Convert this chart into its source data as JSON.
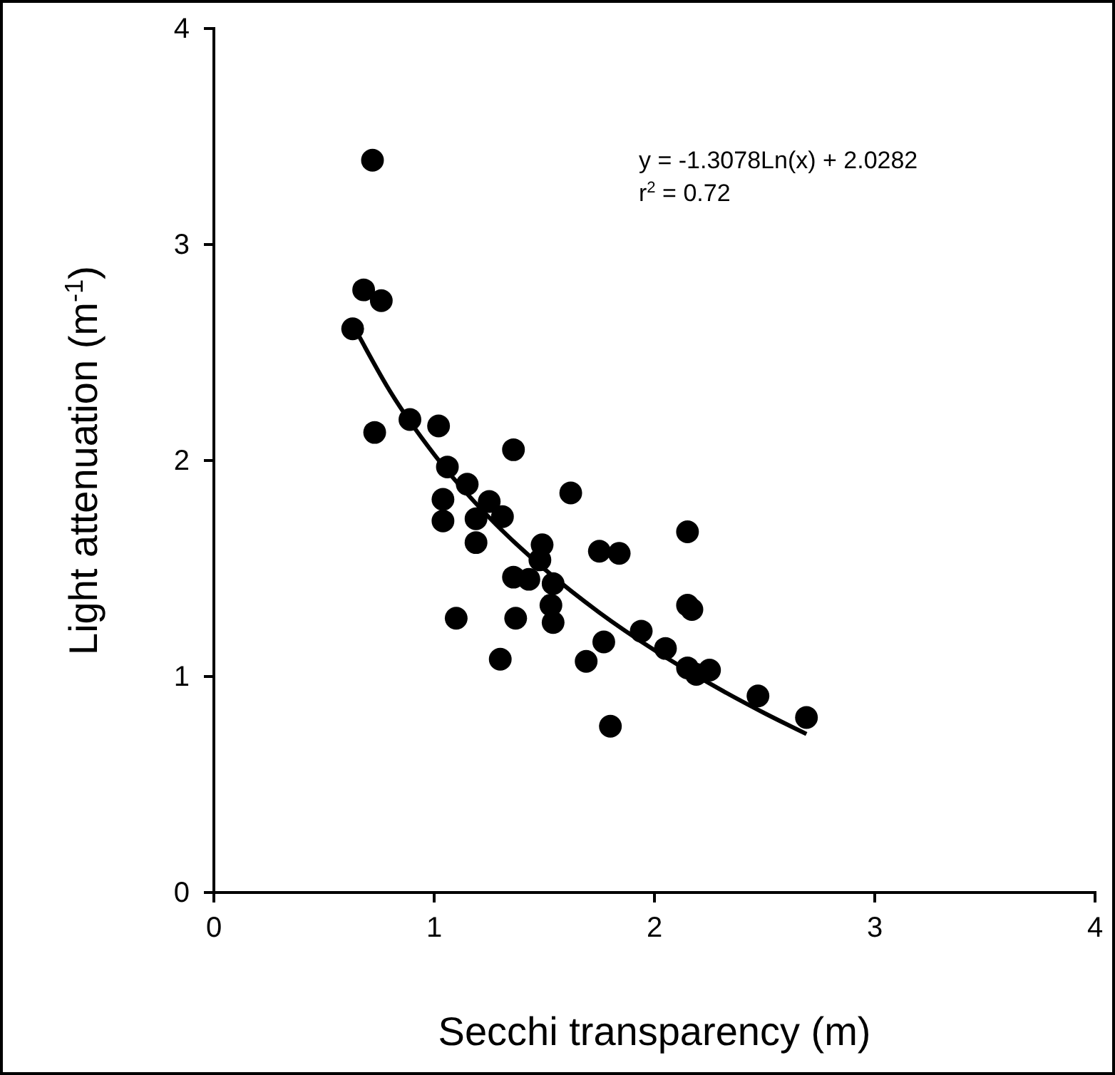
{
  "chart_data": {
    "type": "scatter",
    "xlabel": "Secchi transparency (m)",
    "ylabel": "Light attenuation (m$^{-1}$)",
    "xlim": [
      0,
      4
    ],
    "ylim": [
      0,
      4
    ],
    "xticks": [
      0,
      1,
      2,
      3,
      4
    ],
    "yticks": [
      0,
      1,
      2,
      3,
      4
    ],
    "grid": false,
    "marker": "circle",
    "annotations": [
      "y = -1.3078Ln(x) + 2.0282",
      "r$^{2}$ = 0.72"
    ],
    "series": [
      {
        "color": "#000000",
        "x": [
          0.72,
          0.63,
          0.68,
          0.76,
          0.73,
          0.89,
          1.02,
          1.06,
          1.04,
          1.04,
          1.15,
          1.25,
          1.19,
          1.31,
          1.19,
          1.36,
          1.62,
          1.49,
          1.48,
          1.36,
          1.43,
          1.54,
          1.53,
          1.54,
          1.37,
          1.1,
          1.3,
          1.75,
          1.84,
          2.15,
          2.15,
          2.17,
          1.77,
          1.69,
          1.8,
          1.94,
          2.05,
          2.15,
          2.19,
          2.25,
          2.47,
          2.69
        ],
        "values": [
          3.39,
          2.61,
          2.79,
          2.74,
          2.13,
          2.19,
          2.16,
          1.97,
          1.82,
          1.72,
          1.89,
          1.81,
          1.73,
          1.74,
          1.62,
          2.05,
          1.85,
          1.61,
          1.54,
          1.46,
          1.45,
          1.43,
          1.33,
          1.25,
          1.27,
          1.27,
          1.08,
          1.58,
          1.57,
          1.67,
          1.33,
          1.31,
          1.16,
          1.07,
          0.77,
          1.21,
          1.13,
          1.04,
          1.01,
          1.03,
          0.91,
          0.81
        ]
      },
      {
        "type": "line",
        "color": "#000000",
        "marker": "none",
        "line_style": "solid",
        "x": [
          0.64,
          0.8,
          1.0,
          1.25,
          1.5,
          1.75,
          2.0,
          2.25,
          2.5,
          2.69
        ],
        "values": [
          2.612,
          2.32,
          2.028,
          1.736,
          1.498,
          1.296,
          1.122,
          0.968,
          0.83,
          0.734
        ]
      }
    ]
  }
}
